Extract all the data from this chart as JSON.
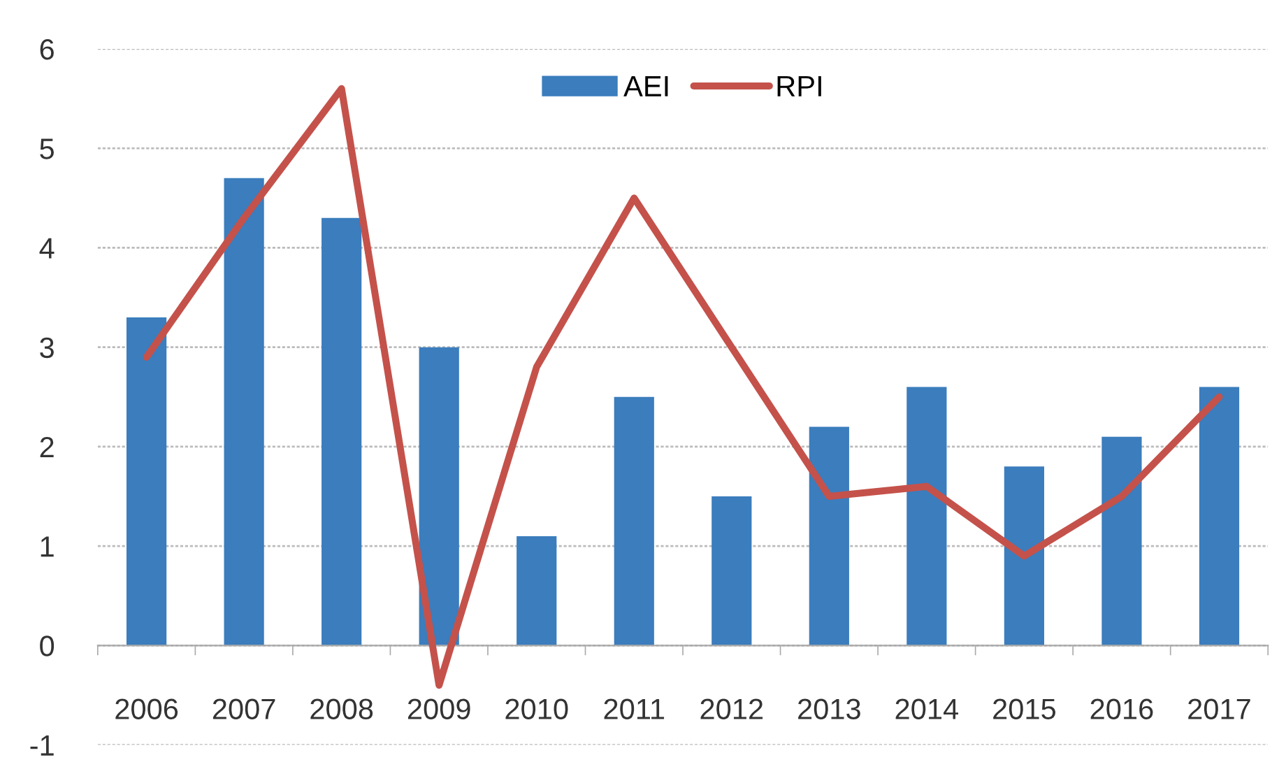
{
  "chart_data": {
    "type": "bar",
    "categories": [
      "2006",
      "2007",
      "2008",
      "2009",
      "2010",
      "2011",
      "2012",
      "2013",
      "2014",
      "2015",
      "2016",
      "2017"
    ],
    "series": [
      {
        "name": "AEI",
        "color": "#3b7dbd",
        "values": [
          3.3,
          4.7,
          4.3,
          3.0,
          1.1,
          2.5,
          1.5,
          2.2,
          2.6,
          1.8,
          2.1,
          2.6
        ]
      },
      {
        "name": "RPI",
        "type": "line",
        "color": "#c4524b",
        "line_style": "solid",
        "values": [
          2.9,
          4.3,
          5.6,
          -0.4,
          2.8,
          4.5,
          3.0,
          1.5,
          1.6,
          0.9,
          1.5,
          2.5
        ]
      }
    ],
    "ylim": [
      -1,
      6
    ],
    "yticks": [
      -1,
      0,
      1,
      2,
      3,
      4,
      5,
      6
    ],
    "grid": "y",
    "legend": "top"
  }
}
